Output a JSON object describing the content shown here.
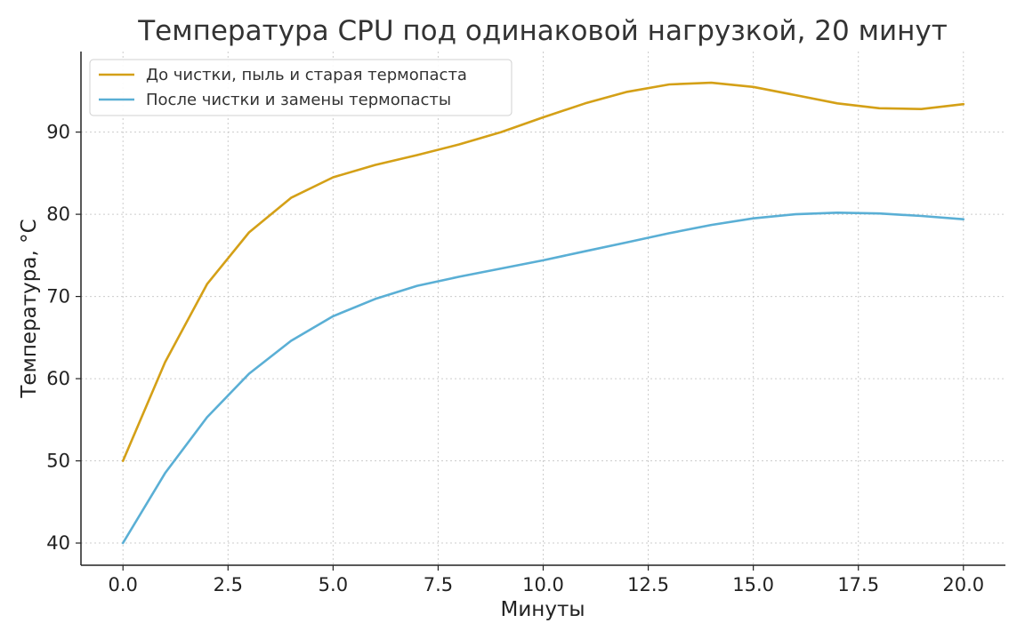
{
  "chart_data": {
    "type": "line",
    "title": "Температура CPU под одинаковой нагрузкой, 20 минут",
    "xlabel": "Минуты",
    "ylabel": "Температура, °C",
    "xlim": [
      -1,
      21
    ],
    "ylim": [
      37.3,
      99.8
    ],
    "xticks": [
      0.0,
      2.5,
      5.0,
      7.5,
      10.0,
      12.5,
      15.0,
      17.5,
      20.0
    ],
    "xtick_labels": [
      "0.0",
      "2.5",
      "5.0",
      "7.5",
      "10.0",
      "12.5",
      "15.0",
      "17.5",
      "20.0"
    ],
    "yticks": [
      40,
      50,
      60,
      70,
      80,
      90
    ],
    "ytick_labels": [
      "40",
      "50",
      "60",
      "70",
      "80",
      "90"
    ],
    "grid": true,
    "legend_position": "top-left",
    "x": [
      0,
      1,
      2,
      3,
      4,
      5,
      6,
      7,
      8,
      9,
      10,
      11,
      12,
      13,
      14,
      15,
      16,
      17,
      18,
      19,
      20
    ],
    "series": [
      {
        "name": "До чистки, пыль и старая термопаста",
        "color": "#d4a017",
        "values": [
          50.0,
          62.0,
          71.5,
          77.8,
          82.0,
          84.5,
          86.0,
          87.2,
          88.5,
          90.0,
          91.8,
          93.5,
          94.9,
          95.8,
          96.0,
          95.5,
          94.5,
          93.5,
          92.9,
          92.8,
          93.4
        ]
      },
      {
        "name": "После чистки и замены термопасты",
        "color": "#5aafd5",
        "values": [
          40.0,
          48.5,
          55.3,
          60.6,
          64.6,
          67.6,
          69.7,
          71.3,
          72.4,
          73.4,
          74.4,
          75.5,
          76.6,
          77.7,
          78.7,
          79.5,
          80.0,
          80.2,
          80.1,
          79.8,
          79.4
        ]
      }
    ]
  }
}
